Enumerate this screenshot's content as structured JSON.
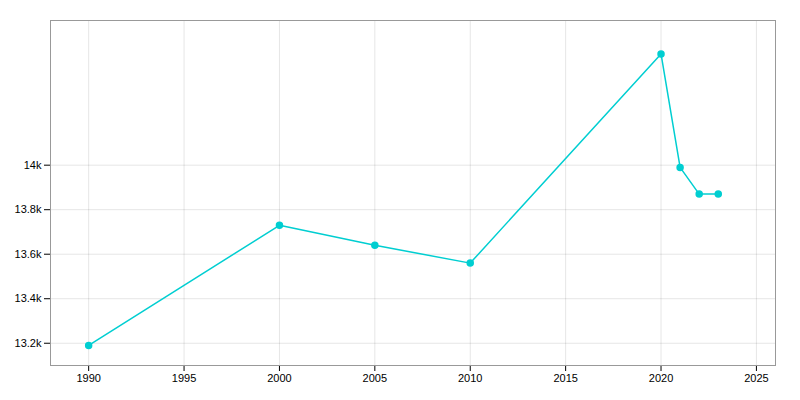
{
  "chart_data": {
    "type": "line",
    "x": [
      1990,
      2000,
      2005,
      2010,
      2020,
      2021,
      2022,
      2023
    ],
    "values": [
      13190,
      13730,
      13640,
      13560,
      14500,
      13990,
      13870,
      13870
    ],
    "color": "#00CED1",
    "marker": "circle",
    "xlim": [
      1988,
      2026
    ],
    "xticks": [
      1990,
      1995,
      2000,
      2005,
      2010,
      2015,
      2020,
      2025
    ],
    "ylim": [
      13100,
      14650
    ],
    "yticks": [
      {
        "value": 13200,
        "label": "13.2k"
      },
      {
        "value": 13400,
        "label": "13.4k"
      },
      {
        "value": 13600,
        "label": "13.6k"
      },
      {
        "value": 13800,
        "label": "13.8k"
      },
      {
        "value": 14000,
        "label": "14k"
      }
    ],
    "grid": true
  }
}
